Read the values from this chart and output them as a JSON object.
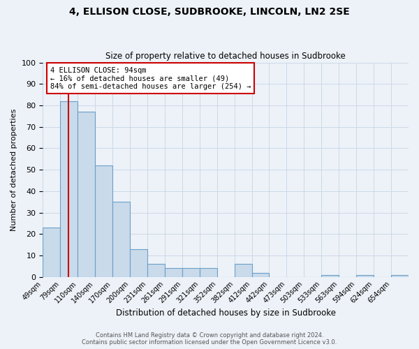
{
  "title": "4, ELLISON CLOSE, SUDBROOKE, LINCOLN, LN2 2SE",
  "subtitle": "Size of property relative to detached houses in Sudbrooke",
  "xlabel": "Distribution of detached houses by size in Sudbrooke",
  "ylabel": "Number of detached properties",
  "bin_labels": [
    "49sqm",
    "79sqm",
    "110sqm",
    "140sqm",
    "170sqm",
    "200sqm",
    "231sqm",
    "261sqm",
    "291sqm",
    "321sqm",
    "352sqm",
    "382sqm",
    "412sqm",
    "442sqm",
    "473sqm",
    "503sqm",
    "533sqm",
    "563sqm",
    "594sqm",
    "624sqm",
    "654sqm"
  ],
  "bar_heights": [
    23,
    82,
    77,
    52,
    35,
    13,
    6,
    4,
    4,
    4,
    0,
    6,
    2,
    0,
    0,
    0,
    1,
    0,
    1,
    0,
    1
  ],
  "bar_color": "#c9daea",
  "bar_edge_color": "#6b9fc8",
  "grid_color": "#ccd8e8",
  "bg_color": "#edf2f8",
  "marker_line_color": "#cc0000",
  "annotation_text": "4 ELLISON CLOSE: 94sqm\n← 16% of detached houses are smaller (49)\n84% of semi-detached houses are larger (254) →",
  "annotation_box_color": "#cc0000",
  "footer_line1": "Contains HM Land Registry data © Crown copyright and database right 2024.",
  "footer_line2": "Contains public sector information licensed under the Open Government Licence v3.0.",
  "ylim": [
    0,
    100
  ],
  "yticks": [
    0,
    10,
    20,
    30,
    40,
    50,
    60,
    70,
    80,
    90,
    100
  ],
  "bin_edges_sqm": [
    49,
    79,
    110,
    140,
    170,
    200,
    231,
    261,
    291,
    321,
    352,
    382,
    412,
    442,
    473,
    503,
    533,
    563,
    594,
    624,
    654
  ],
  "marker_sqm": 94
}
